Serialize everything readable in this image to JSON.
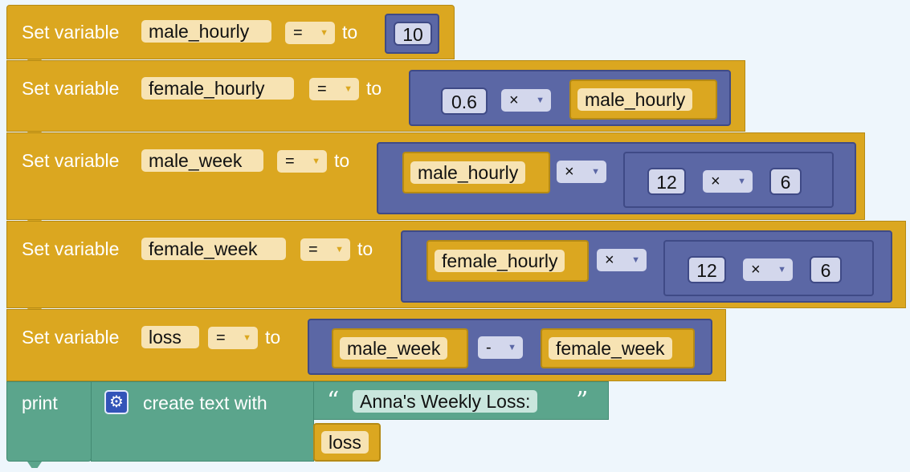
{
  "labels": {
    "set_variable": "Set variable",
    "to": "to",
    "print": "print",
    "create_text_with": "create text with",
    "quote_open": "“",
    "quote_close": "”"
  },
  "operators": {
    "assign": "=",
    "multiply": "×",
    "minus": "-",
    "dropdown_arrow": "▼"
  },
  "blocks": [
    {
      "variable": "male_hourly",
      "value": "10"
    },
    {
      "variable": "female_hourly",
      "factor": "0.6",
      "operand": "male_hourly"
    },
    {
      "variable": "male_week",
      "operand": "male_hourly",
      "inner_a": "12",
      "inner_b": "6"
    },
    {
      "variable": "female_week",
      "operand": "female_hourly",
      "inner_a": "12",
      "inner_b": "6"
    },
    {
      "variable": "loss",
      "left": "male_week",
      "right": "female_week"
    }
  ],
  "print_block": {
    "text": "Anna's Weekly Loss:",
    "item": "loss"
  },
  "icons": {
    "gear": "gear-icon"
  },
  "colors": {
    "variable_block": "#dba720",
    "math_block": "#5b67a5",
    "text_block": "#5ba58c",
    "field": "#f7e3b3",
    "mutator_icon": "#3354b8"
  }
}
